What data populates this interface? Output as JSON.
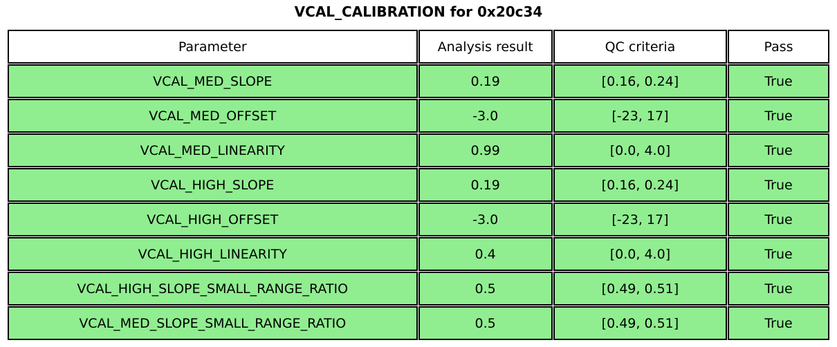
{
  "title": "VCAL_CALIBRATION for 0x20c34",
  "chart_data": {
    "type": "table",
    "title": "VCAL_CALIBRATION for 0x20c34",
    "columns": [
      "Parameter",
      "Analysis result",
      "QC criteria",
      "Pass"
    ],
    "rows": [
      [
        "VCAL_MED_SLOPE",
        "0.19",
        "[0.16, 0.24]",
        "True"
      ],
      [
        "VCAL_MED_OFFSET",
        "-3.0",
        "[-23, 17]",
        "True"
      ],
      [
        "VCAL_MED_LINEARITY",
        "0.99",
        "[0.0, 4.0]",
        "True"
      ],
      [
        "VCAL_HIGH_SLOPE",
        "0.19",
        "[0.16, 0.24]",
        "True"
      ],
      [
        "VCAL_HIGH_OFFSET",
        "-3.0",
        "[-23, 17]",
        "True"
      ],
      [
        "VCAL_HIGH_LINEARITY",
        "0.4",
        "[0.0, 4.0]",
        "True"
      ],
      [
        "VCAL_HIGH_SLOPE_SMALL_RANGE_RATIO",
        "0.5",
        "[0.49, 0.51]",
        "True"
      ],
      [
        "VCAL_MED_SLOPE_SMALL_RANGE_RATIO",
        "0.5",
        "[0.49, 0.51]",
        "True"
      ]
    ],
    "colors": {
      "pass_row_bg": "#90ee90",
      "header_bg": "#ffffff",
      "border": "#000000",
      "text": "#000000",
      "background": "#ffffff"
    },
    "layout": {
      "header_position": "top",
      "all_rows_pass": true
    }
  }
}
